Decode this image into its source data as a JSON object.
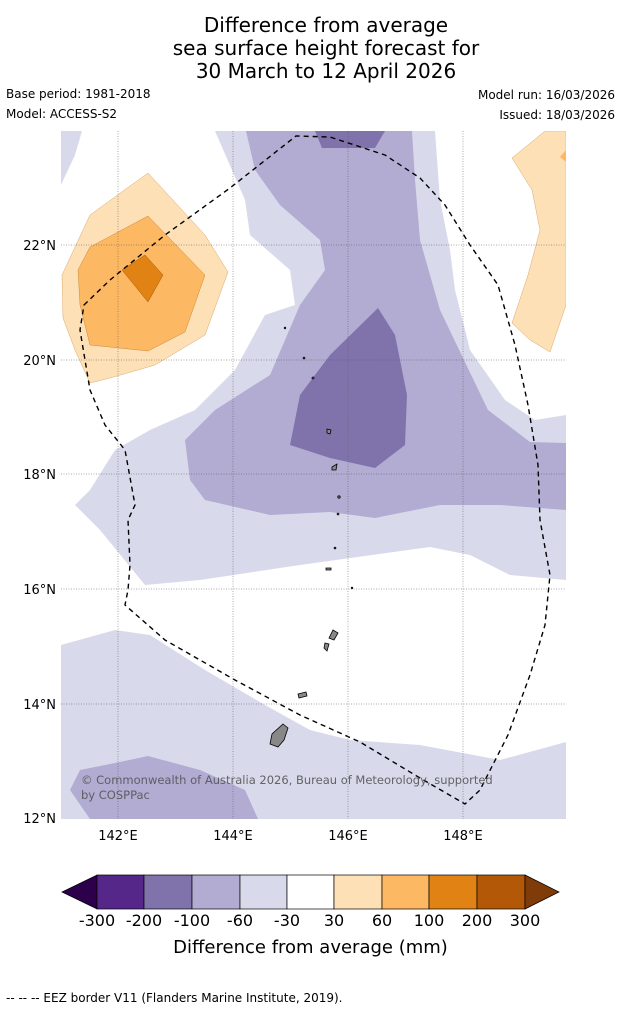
{
  "title": {
    "line1": "Difference from average",
    "line2": "sea surface height forecast for",
    "line3": "30 March to 12 April 2026"
  },
  "meta": {
    "base_period": "Base period: 1981-2018",
    "model": "Model: ACCESS-S2",
    "model_run": "Model run: 16/03/2026",
    "issued": "Issued: 18/03/2026"
  },
  "map": {
    "lon_range": [
      141,
      149.8
    ],
    "lat_range": [
      12,
      24
    ],
    "x_ticks": [
      "142°E",
      "144°E",
      "146°E",
      "148°E"
    ],
    "y_ticks": [
      "12°N",
      "14°N",
      "16°N",
      "18°N",
      "20°N",
      "22°N"
    ],
    "copyright": "© Commonwealth of Australia 2026, Bureau of Meteorology, supported by COSPPac",
    "copyright_line1": "© Commonwealth of Australia 2026, Bureau of Meteorology, supported",
    "copyright_line2": "by COSPPac"
  },
  "colorbar": {
    "ticks": [
      "-300",
      "-200",
      "-100",
      "-60",
      "-30",
      "30",
      "60",
      "100",
      "200",
      "300"
    ],
    "colors": [
      "#2d004b",
      "#542788",
      "#8073ac",
      "#b2abd2",
      "#d8daeb",
      "#ffffff",
      "#fee0b6",
      "#fdb863",
      "#e08214",
      "#b35806",
      "#7f3b08"
    ],
    "label": "Difference from average (mm)"
  },
  "footer": {
    "eez_credit": "--  --  -- EEZ border V11 (Flanders Marine Institute, 2019)."
  }
}
